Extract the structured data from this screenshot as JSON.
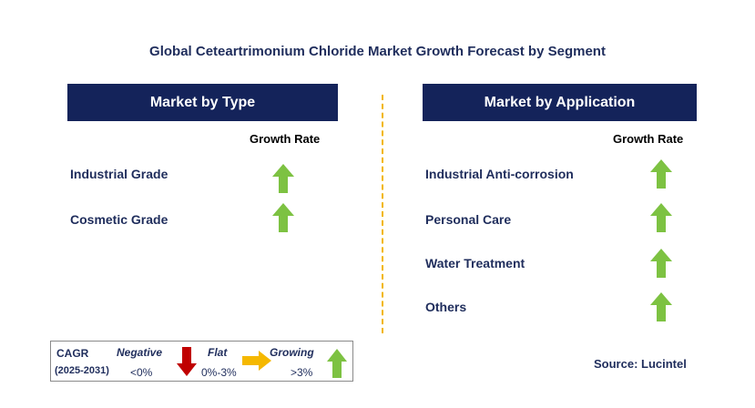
{
  "title": "Global Ceteartrimonium Chloride Market Growth Forecast by Segment",
  "left_panel": {
    "header": "Market by Type",
    "growth_label": "Growth Rate",
    "items": [
      {
        "label": "Industrial Grade",
        "trend": "growing"
      },
      {
        "label": "Cosmetic Grade",
        "trend": "growing"
      }
    ]
  },
  "right_panel": {
    "header": "Market by Application",
    "growth_label": "Growth Rate",
    "items": [
      {
        "label": "Industrial Anti-corrosion",
        "trend": "growing"
      },
      {
        "label": "Personal Care",
        "trend": "growing"
      },
      {
        "label": "Water Treatment",
        "trend": "growing"
      },
      {
        "label": "Others",
        "trend": "growing"
      }
    ]
  },
  "legend": {
    "cagr_label": "CAGR",
    "period": "(2025-2031)",
    "negative_label": "Negative",
    "negative_value": "<0%",
    "flat_label": "Flat",
    "flat_value": "0%-3%",
    "growing_label": "Growing",
    "growing_value": ">3%"
  },
  "source": "Source: Lucintel",
  "colors": {
    "header_bg": "#14235a",
    "growing": "#7dc242",
    "negative": "#c00000",
    "flat": "#f5b800",
    "divider": "#f2b600"
  }
}
